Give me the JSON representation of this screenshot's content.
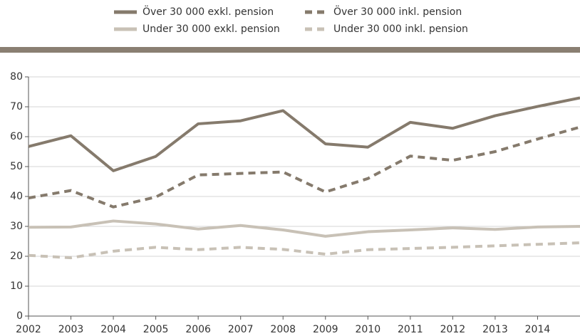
{
  "chart_data": {
    "type": "line",
    "x": [
      2002,
      2003,
      2004,
      2005,
      2006,
      2007,
      2008,
      2009,
      2010,
      2011,
      2012,
      2013,
      2014,
      2015
    ],
    "series": [
      {
        "name": "Över 30 000 exkl. pension",
        "color": "#857a6c",
        "dash": false,
        "values": [
          56.7,
          60.3,
          48.6,
          53.4,
          64.3,
          65.3,
          68.7,
          57.6,
          56.5,
          64.8,
          62.8,
          67,
          70.1,
          73
        ]
      },
      {
        "name": "Över 30 000 inkl. pension",
        "color": "#857a6c",
        "dash": true,
        "values": [
          39.5,
          42,
          36.5,
          39.8,
          47.2,
          47.7,
          48.2,
          41.5,
          46,
          53.5,
          52.1,
          55,
          59.2,
          63.2
        ]
      },
      {
        "name": "Under 30 000 exkl. pension",
        "color": "#c8c1b6",
        "dash": false,
        "values": [
          29.7,
          29.8,
          31.8,
          30.8,
          29.1,
          30.3,
          28.8,
          26.7,
          28.2,
          28.8,
          29.5,
          29,
          29.8,
          30
        ]
      },
      {
        "name": "Under 30 000 inkl. pension",
        "color": "#c8c1b6",
        "dash": true,
        "values": [
          20.3,
          19.5,
          21.7,
          23,
          22.2,
          23,
          22.3,
          20.7,
          22.2,
          22.6,
          23,
          23.5,
          24,
          24.5
        ]
      }
    ],
    "xlim": [
      2002,
      2015
    ],
    "xticks": [
      2002,
      2003,
      2004,
      2005,
      2006,
      2007,
      2008,
      2009,
      2010,
      2011,
      2012,
      2013,
      2014
    ],
    "ylim": [
      0,
      80
    ],
    "yticks": [
      0,
      10,
      20,
      30,
      40,
      50,
      60,
      70,
      80
    ],
    "grid": true,
    "legend": "top"
  }
}
